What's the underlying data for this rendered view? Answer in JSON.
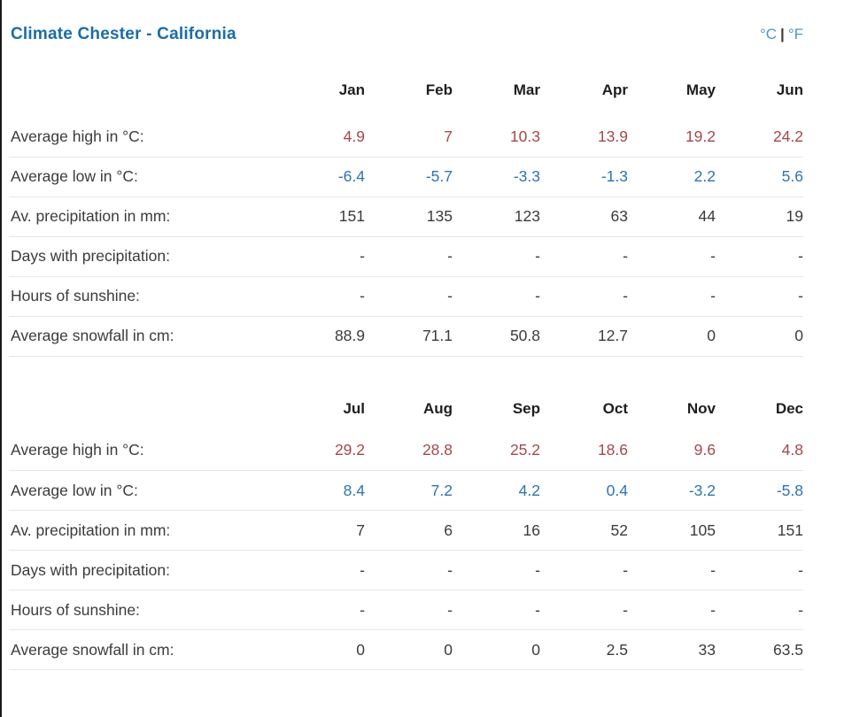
{
  "header": {
    "title": "Climate Chester - California",
    "unit_celsius": "°C",
    "unit_separator": "|",
    "unit_fahrenheit": "°F"
  },
  "colors": {
    "title_blue": "#1b6da6",
    "unit_link_blue": "#4d96c8",
    "high_red": "#a5484b",
    "low_blue": "#2d73b2",
    "text": "#3b3b3b",
    "row_divider": "#e6e6e6",
    "left_border": "#1a1a1a"
  },
  "chart_data": {
    "type": "table",
    "title": "Climate Chester - California",
    "tables": [
      {
        "id": "jan-jun",
        "months": [
          "Jan",
          "Feb",
          "Mar",
          "Apr",
          "May",
          "Jun"
        ],
        "rows": [
          {
            "label": "Average high in °C:",
            "type": "high",
            "values": [
              "4.9",
              "7",
              "10.3",
              "13.9",
              "19.2",
              "24.2"
            ]
          },
          {
            "label": "Average low in °C:",
            "type": "low",
            "values": [
              "-6.4",
              "-5.7",
              "-3.3",
              "-1.3",
              "2.2",
              "5.6"
            ]
          },
          {
            "label": "Av. precipitation in mm:",
            "type": "normal",
            "values": [
              "151",
              "135",
              "123",
              "63",
              "44",
              "19"
            ]
          },
          {
            "label": "Days with precipitation:",
            "type": "normal",
            "values": [
              "-",
              "-",
              "-",
              "-",
              "-",
              "-"
            ]
          },
          {
            "label": "Hours of sunshine:",
            "type": "normal",
            "values": [
              "-",
              "-",
              "-",
              "-",
              "-",
              "-"
            ]
          },
          {
            "label": "Average snowfall in cm:",
            "type": "normal",
            "values": [
              "88.9",
              "71.1",
              "50.8",
              "12.7",
              "0",
              "0"
            ]
          }
        ]
      },
      {
        "id": "jul-dec",
        "months": [
          "Jul",
          "Aug",
          "Sep",
          "Oct",
          "Nov",
          "Dec"
        ],
        "rows": [
          {
            "label": "Average high in °C:",
            "type": "high",
            "values": [
              "29.2",
              "28.8",
              "25.2",
              "18.6",
              "9.6",
              "4.8"
            ]
          },
          {
            "label": "Average low in °C:",
            "type": "low",
            "values": [
              "8.4",
              "7.2",
              "4.2",
              "0.4",
              "-3.2",
              "-5.8"
            ]
          },
          {
            "label": "Av. precipitation in mm:",
            "type": "normal",
            "values": [
              "7",
              "6",
              "16",
              "52",
              "105",
              "151"
            ]
          },
          {
            "label": "Days with precipitation:",
            "type": "normal",
            "values": [
              "-",
              "-",
              "-",
              "-",
              "-",
              "-"
            ]
          },
          {
            "label": "Hours of sunshine:",
            "type": "normal",
            "values": [
              "-",
              "-",
              "-",
              "-",
              "-",
              "-"
            ]
          },
          {
            "label": "Average snowfall in cm:",
            "type": "normal",
            "values": [
              "0",
              "0",
              "0",
              "2.5",
              "33",
              "63.5"
            ]
          }
        ]
      }
    ]
  }
}
